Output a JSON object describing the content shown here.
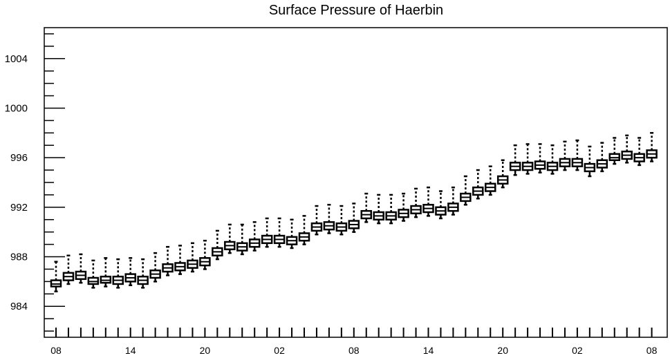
{
  "chart_data": {
    "type": "box",
    "title": "Surface Pressure of Haerbin",
    "xlabel": "",
    "ylabel": "",
    "ylim": [
      981.5,
      1006.5
    ],
    "y_ticks": [
      "984",
      "988",
      "992",
      "996",
      "1000",
      "1004"
    ],
    "x_ticks": [
      "08",
      "14",
      "20",
      "02",
      "08",
      "14",
      "20",
      "02",
      "08"
    ],
    "grid": false,
    "series": [
      {
        "x": [
          0,
          1,
          2,
          3,
          4,
          5,
          6,
          7,
          8,
          9,
          10,
          11,
          12,
          13,
          14,
          15,
          16,
          17,
          18,
          19,
          20,
          21,
          22,
          23,
          24,
          25,
          26,
          27,
          28,
          29,
          30,
          31,
          32,
          33,
          34,
          35,
          36,
          37,
          38,
          39,
          40,
          41,
          42,
          43,
          44,
          45,
          46,
          47,
          48
        ],
        "median": [
          985.8,
          986.4,
          986.5,
          986.0,
          986.1,
          986.1,
          986.3,
          986.1,
          986.6,
          987.1,
          987.2,
          987.4,
          987.6,
          988.4,
          988.9,
          988.8,
          989.1,
          989.4,
          989.4,
          989.3,
          989.6,
          990.4,
          990.5,
          990.4,
          990.6,
          991.4,
          991.3,
          991.3,
          991.5,
          991.8,
          991.9,
          991.7,
          992.0,
          992.8,
          993.3,
          993.6,
          994.2,
          995.3,
          995.3,
          995.4,
          995.3,
          995.6,
          995.6,
          995.2,
          995.5,
          996.0,
          996.2,
          996.0,
          996.3
        ],
        "q1": [
          985.6,
          986.1,
          986.2,
          985.8,
          985.9,
          985.8,
          986.0,
          985.8,
          986.3,
          986.8,
          986.9,
          987.1,
          987.3,
          988.1,
          988.6,
          988.5,
          988.8,
          989.1,
          989.1,
          989.0,
          989.3,
          990.1,
          990.2,
          990.1,
          990.3,
          991.1,
          991.0,
          991.0,
          991.2,
          991.5,
          991.6,
          991.4,
          991.7,
          992.5,
          993.0,
          993.3,
          993.9,
          995.0,
          995.0,
          995.1,
          995.0,
          995.3,
          995.3,
          994.9,
          995.2,
          995.8,
          995.9,
          995.7,
          996.0
        ],
        "q3": [
          986.1,
          986.7,
          986.8,
          986.3,
          986.4,
          986.4,
          986.6,
          986.4,
          986.9,
          987.4,
          987.5,
          987.7,
          987.9,
          988.7,
          989.2,
          989.1,
          989.4,
          989.7,
          989.7,
          989.6,
          989.9,
          990.7,
          990.8,
          990.7,
          990.9,
          991.7,
          991.6,
          991.6,
          991.8,
          992.1,
          992.2,
          992.0,
          992.3,
          993.1,
          993.6,
          993.9,
          994.5,
          995.6,
          995.6,
          995.7,
          995.6,
          995.9,
          995.9,
          995.5,
          995.8,
          996.3,
          996.5,
          996.3,
          996.6
        ],
        "low": [
          985.2,
          985.8,
          985.9,
          985.5,
          985.6,
          985.5,
          985.7,
          985.5,
          986.0,
          986.5,
          986.6,
          986.8,
          987.0,
          987.8,
          988.3,
          988.2,
          988.5,
          988.8,
          988.8,
          988.7,
          989.0,
          989.8,
          989.9,
          989.8,
          990.0,
          990.8,
          990.7,
          990.7,
          990.9,
          991.2,
          991.3,
          991.1,
          991.4,
          992.2,
          992.7,
          993.0,
          993.6,
          994.6,
          994.7,
          994.8,
          994.7,
          995.0,
          995.0,
          994.5,
          994.9,
          995.5,
          995.6,
          995.4,
          995.7
        ],
        "high": [
          987.6,
          988.1,
          988.2,
          987.7,
          987.9,
          987.8,
          987.9,
          987.8,
          988.3,
          988.8,
          988.9,
          989.1,
          989.3,
          990.1,
          990.6,
          990.6,
          990.8,
          991.1,
          991.1,
          991.0,
          991.3,
          992.1,
          992.2,
          992.1,
          992.3,
          993.1,
          993.0,
          993.0,
          993.1,
          993.5,
          993.6,
          993.3,
          993.6,
          994.5,
          995.0,
          995.3,
          995.8,
          997.0,
          997.1,
          997.1,
          997.0,
          997.3,
          997.4,
          996.9,
          997.2,
          997.6,
          997.8,
          997.6,
          998.0
        ]
      }
    ]
  }
}
